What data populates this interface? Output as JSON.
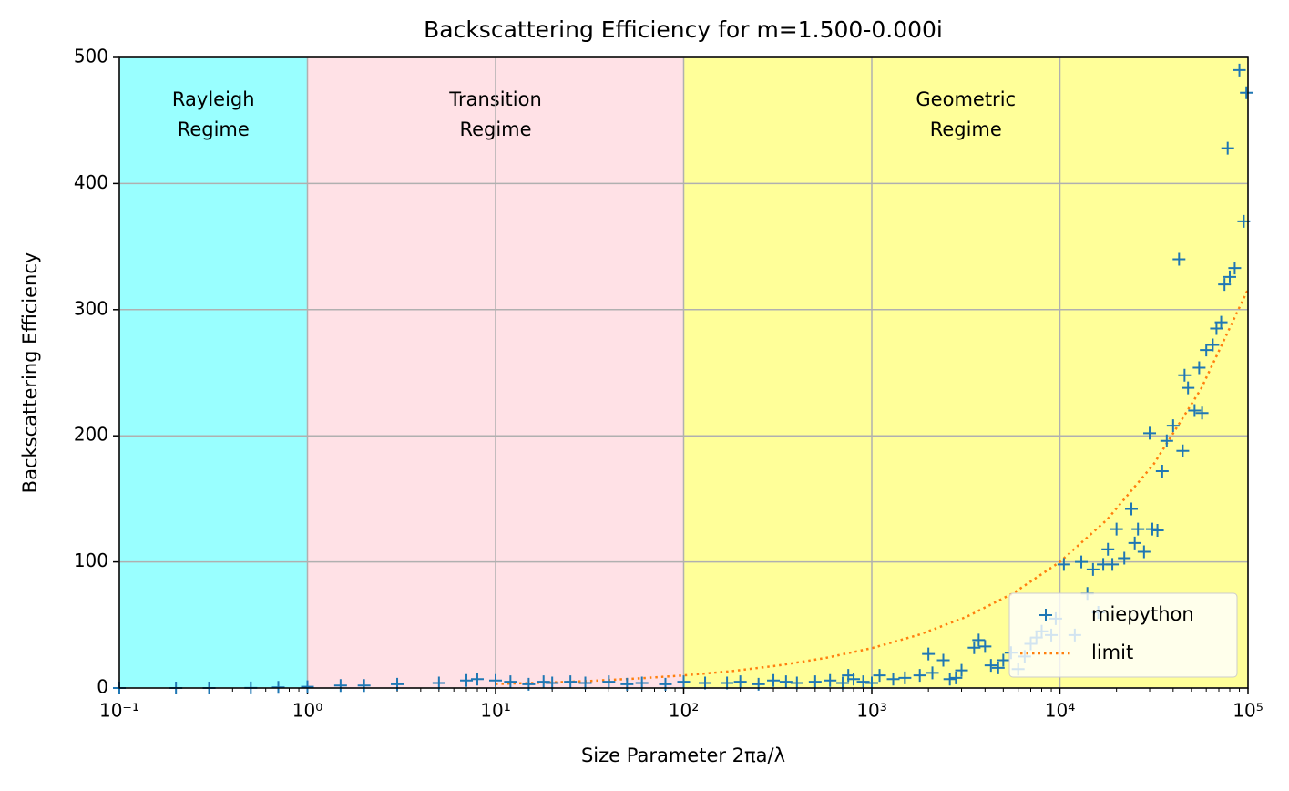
{
  "chart_data": {
    "type": "scatter",
    "title": "Backscattering Efficiency for m=1.500-0.000i",
    "xlabel": "Size Parameter 2πa/λ",
    "ylabel": "Backscattering Efficiency",
    "xscale": "log",
    "xlim": [
      0.1,
      100000
    ],
    "ylim": [
      0,
      500
    ],
    "xticks": [
      {
        "value": 0.1,
        "label": "10⁻¹"
      },
      {
        "value": 1,
        "label": "10⁰"
      },
      {
        "value": 10,
        "label": "10¹"
      },
      {
        "value": 100,
        "label": "10²"
      },
      {
        "value": 1000,
        "label": "10³"
      },
      {
        "value": 10000,
        "label": "10⁴"
      },
      {
        "value": 100000,
        "label": "10⁵"
      }
    ],
    "yticks": [
      0,
      100,
      200,
      300,
      400,
      500
    ],
    "grid": true,
    "legend": "lower right",
    "regions": [
      {
        "label": [
          "Rayleigh",
          "Regime"
        ],
        "xrange": [
          0.1,
          1
        ],
        "color": "#99ffff"
      },
      {
        "label": [
          "Transition",
          "Regime"
        ],
        "xrange": [
          1,
          100
        ],
        "color": "#ffe1e6"
      },
      {
        "label": [
          "Geometric",
          "Regime"
        ],
        "xrange": [
          100,
          100000
        ],
        "color": "#ffff99"
      }
    ],
    "series": [
      {
        "name": "miepython",
        "color": "#1f77b4",
        "marker": "+",
        "x": [
          0.1,
          0.2,
          0.3,
          0.5,
          0.7,
          1,
          1.5,
          2,
          3,
          5,
          7,
          8,
          10,
          12,
          15,
          18,
          20,
          25,
          30,
          40,
          50,
          60,
          80,
          100,
          130,
          170,
          200,
          250,
          300,
          350,
          400,
          500,
          600,
          700,
          750,
          800,
          900,
          1000,
          1100,
          1300,
          1500,
          1800,
          2000,
          2100,
          2400,
          2600,
          2800,
          3000,
          3500,
          3700,
          4000,
          4300,
          4700,
          5000,
          5500,
          6000,
          6500,
          7000,
          7500,
          8000,
          9000,
          9500,
          10500,
          12000,
          13000,
          14000,
          15000,
          16000,
          17000,
          18000,
          19000,
          20000,
          22000,
          24000,
          25000,
          26000,
          28000,
          30000,
          31000,
          33000,
          35000,
          37000,
          40000,
          43000,
          45000,
          46000,
          48000,
          52000,
          55000,
          57000,
          60000,
          65000,
          68000,
          72000,
          75000,
          78000,
          80000,
          85000,
          90000,
          95000,
          98000
        ],
        "values": [
          0,
          0,
          0,
          0.1,
          0.5,
          1,
          2,
          2,
          3,
          4,
          6,
          7,
          6,
          5,
          3,
          5,
          4,
          5,
          4,
          5,
          3,
          4,
          3,
          5,
          4,
          4,
          5,
          3,
          6,
          5,
          4,
          5,
          6,
          4,
          10,
          7,
          5,
          4,
          10,
          7,
          8,
          10,
          27,
          12,
          22,
          7,
          8,
          14,
          32,
          38,
          33,
          18,
          16,
          22,
          28,
          15,
          25,
          35,
          40,
          45,
          42,
          55,
          98,
          42,
          100,
          75,
          94,
          60,
          98,
          110,
          98,
          126,
          103,
          142,
          115,
          126,
          108,
          202,
          126,
          125,
          172,
          196,
          208,
          340,
          188,
          248,
          238,
          220,
          254,
          218,
          268,
          272,
          285,
          290,
          320,
          428,
          326,
          333,
          490,
          370,
          472
        ]
      },
      {
        "name": "limit",
        "color": "#ff7f0e",
        "style": "dotted",
        "x": [
          10,
          17.8,
          31.6,
          56.2,
          100,
          178,
          316,
          562,
          1000,
          1778,
          3162,
          5623,
          10000,
          17783,
          31623,
          56234,
          100000
        ],
        "values": [
          3.2,
          4.2,
          5.6,
          7.5,
          10,
          13.3,
          17.8,
          23.7,
          31.6,
          42.2,
          56.2,
          75,
          100,
          133.4,
          177.8,
          237.1,
          316.2
        ]
      }
    ]
  }
}
